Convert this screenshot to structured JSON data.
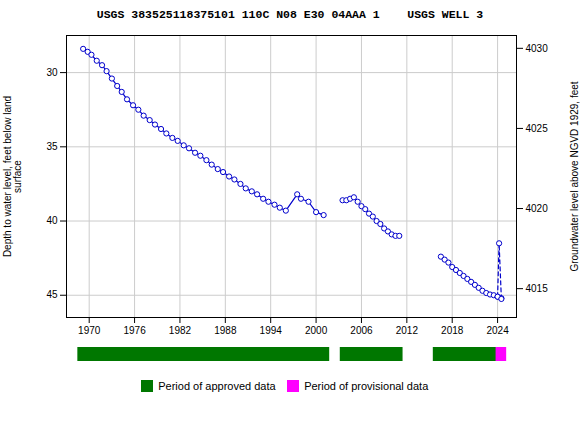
{
  "chart_data": [
    {
      "type": "line",
      "title": "USGS 383525118375101 110C N08 E30 04AAA 1    USGS WELL 3",
      "ylabel": "Depth to water level, feet below land\nsurface",
      "y2label": "Groundwater level above NGVD 1929, feet",
      "xlim": [
        1967.0,
        2026.5
      ],
      "xticks": [
        1970,
        1976,
        1982,
        1988,
        1994,
        2000,
        2006,
        2012,
        2018,
        2024
      ],
      "ylim": [
        46.5,
        27.5
      ],
      "yticks": [
        30,
        35,
        40,
        45
      ],
      "y2lim": [
        4013.2,
        4030.8
      ],
      "y2ticks": [
        4015,
        4020,
        4025,
        4030
      ],
      "grid": true,
      "series": [
        {
          "color": "#0000cc",
          "line_style": "solid",
          "marker": "o",
          "x": [
            1969.2,
            1969.8,
            1970.3,
            1971.0,
            1971.7,
            1972.3,
            1973.0,
            1973.7,
            1974.3,
            1975.0,
            1975.8,
            1976.5,
            1977.2,
            1978.0,
            1978.7,
            1979.5,
            1980.2,
            1981.0,
            1981.7,
            1982.5,
            1983.2,
            1984.0,
            1984.7,
            1985.5,
            1986.2,
            1987.0,
            1987.7,
            1988.5,
            1989.2,
            1990.0,
            1990.7,
            1991.5,
            1992.2,
            1993.0,
            1993.7,
            1994.5,
            1995.2,
            1996.0,
            1997.5,
            1998.0,
            1999.0,
            2000.0,
            2001.0,
            null,
            2003.5,
            2004.0,
            2004.5,
            2005.0,
            2005.5,
            2006.0,
            2006.5,
            2007.0,
            2007.5,
            2008.0,
            2008.5,
            2009.0,
            2009.5,
            2010.0,
            2010.5,
            2011.0,
            null,
            2016.5,
            2017.0,
            2017.5,
            2018.0,
            2018.5,
            2019.0,
            2019.5,
            2020.0,
            2020.5,
            2021.0,
            2021.5,
            2022.0,
            2022.5,
            2023.0,
            2023.5,
            2024.0,
            2024.5
          ],
          "values": [
            28.4,
            28.6,
            28.8,
            29.2,
            29.5,
            29.9,
            30.4,
            30.9,
            31.3,
            31.8,
            32.2,
            32.5,
            32.9,
            33.2,
            33.5,
            33.8,
            34.1,
            34.4,
            34.6,
            34.9,
            35.1,
            35.4,
            35.6,
            35.9,
            36.2,
            36.5,
            36.7,
            37.0,
            37.2,
            37.5,
            37.8,
            38.0,
            38.2,
            38.5,
            38.7,
            38.9,
            39.1,
            39.3,
            38.2,
            38.5,
            38.7,
            39.4,
            39.6,
            null,
            38.6,
            38.6,
            38.5,
            38.4,
            38.7,
            39.0,
            39.2,
            39.5,
            39.7,
            40.0,
            40.2,
            40.5,
            40.7,
            40.9,
            41.0,
            41.0,
            null,
            42.4,
            42.6,
            42.8,
            43.1,
            43.3,
            43.5,
            43.7,
            43.9,
            44.1,
            44.3,
            44.5,
            44.7,
            44.85,
            44.95,
            45.0,
            45.1,
            45.2
          ]
        },
        {
          "color": "#0000cc",
          "line_style": "dashed",
          "marker": "o",
          "x": [
            2024.0,
            2024.2,
            2024.5
          ],
          "values": [
            45.1,
            41.5,
            45.25
          ]
        }
      ]
    },
    {
      "type": "timeline",
      "xlim": [
        1967.0,
        2026.5
      ],
      "tick_labels": false,
      "legend": "bottom",
      "series": [
        {
          "name": "Period of approved data",
          "color": "#007700",
          "values": [
            [
              1968.5,
              2001.8
            ],
            [
              2003.2,
              2011.5
            ],
            [
              2015.5,
              2024.8
            ]
          ]
        },
        {
          "name": "Period of provisional data",
          "color": "#ff00ff",
          "values": [
            [
              2023.8,
              2025.2
            ]
          ]
        }
      ]
    }
  ]
}
